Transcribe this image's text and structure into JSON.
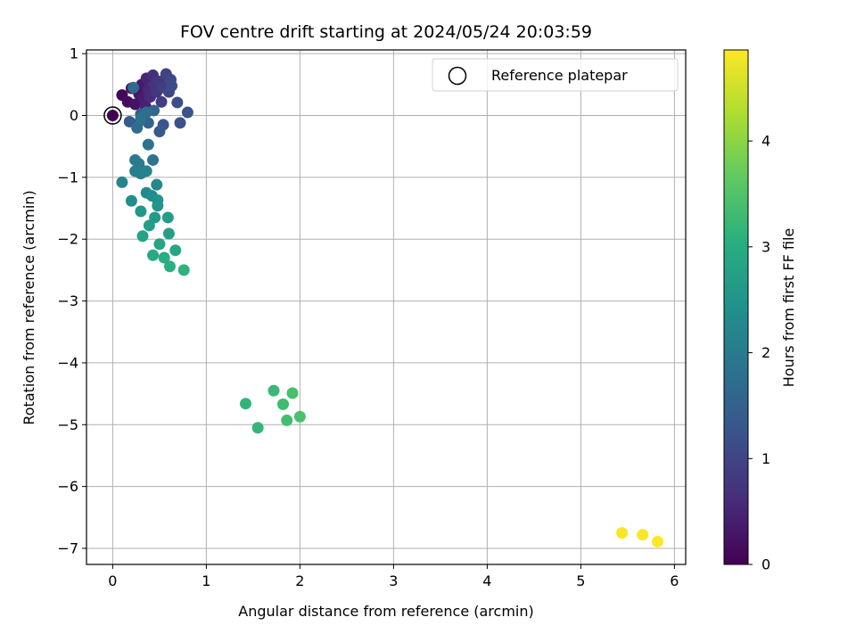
{
  "chart_data": {
    "type": "scatter",
    "title": "FOV centre drift starting at 2024/05/24 20:03:59",
    "xlabel": "Angular distance from reference (arcmin)",
    "ylabel": "Rotation from reference (arcmin)",
    "xlim": [
      -0.28,
      6.12
    ],
    "ylim": [
      -7.26,
      1.06
    ],
    "xticks": [
      0,
      1,
      2,
      3,
      4,
      5,
      6
    ],
    "xtick_labels": [
      "0",
      "1",
      "2",
      "3",
      "4",
      "5",
      "6"
    ],
    "yticks": [
      1,
      0,
      -1,
      -2,
      -3,
      -4,
      -5,
      -6,
      -7
    ],
    "ytick_labels": [
      "1",
      "0",
      "−1",
      "−2",
      "−3",
      "−4",
      "−5",
      "−6",
      "−7"
    ],
    "grid": true,
    "legend": {
      "label": "Reference platepar",
      "placement": "upper right"
    },
    "reference_point": {
      "x": 0,
      "y": 0
    },
    "colorbar": {
      "label": "Hours from first FF file",
      "colormap": "viridis",
      "range": [
        0,
        4.86
      ],
      "ticks": [
        0,
        1,
        2,
        3,
        4
      ],
      "tick_labels": [
        "0",
        "1",
        "2",
        "3",
        "4"
      ]
    },
    "series": [
      {
        "points": [
          {
            "x": 0.0,
            "y": 0.0,
            "c": 0.0
          },
          {
            "x": 0.1,
            "y": 0.33,
            "c": 0.1
          },
          {
            "x": 0.16,
            "y": 0.22,
            "c": 0.15
          },
          {
            "x": 0.2,
            "y": 0.44,
            "c": 0.2
          },
          {
            "x": 0.24,
            "y": 0.18,
            "c": 0.25
          },
          {
            "x": 0.28,
            "y": 0.35,
            "c": 0.3
          },
          {
            "x": 0.31,
            "y": 0.5,
            "c": 0.35
          },
          {
            "x": 0.33,
            "y": 0.28,
            "c": 0.4
          },
          {
            "x": 0.35,
            "y": 0.15,
            "c": 0.45
          },
          {
            "x": 0.36,
            "y": 0.6,
            "c": 0.5
          },
          {
            "x": 0.38,
            "y": 0.42,
            "c": 0.55
          },
          {
            "x": 0.4,
            "y": 0.3,
            "c": 0.6
          },
          {
            "x": 0.43,
            "y": 0.65,
            "c": 0.65
          },
          {
            "x": 0.45,
            "y": 0.5,
            "c": 0.7
          },
          {
            "x": 0.47,
            "y": 0.38,
            "c": 0.75
          },
          {
            "x": 0.5,
            "y": 0.55,
            "c": 0.8
          },
          {
            "x": 0.52,
            "y": 0.22,
            "c": 0.85
          },
          {
            "x": 0.55,
            "y": 0.45,
            "c": 0.9
          },
          {
            "x": 0.57,
            "y": 0.67,
            "c": 0.95
          },
          {
            "x": 0.6,
            "y": 0.38,
            "c": 1.0
          },
          {
            "x": 0.62,
            "y": 0.58,
            "c": 1.05
          },
          {
            "x": 0.63,
            "y": 0.48,
            "c": 1.1
          },
          {
            "x": 0.69,
            "y": 0.21,
            "c": 1.15
          },
          {
            "x": 0.72,
            "y": -0.12,
            "c": 1.2
          },
          {
            "x": 0.8,
            "y": 0.05,
            "c": 1.25
          },
          {
            "x": 0.54,
            "y": -0.15,
            "c": 1.3
          },
          {
            "x": 0.5,
            "y": -0.26,
            "c": 1.35
          },
          {
            "x": 0.18,
            "y": -0.1,
            "c": 1.4
          },
          {
            "x": 0.26,
            "y": -0.15,
            "c": 1.45
          },
          {
            "x": 0.3,
            "y": 0.02,
            "c": 1.5
          },
          {
            "x": 0.38,
            "y": -0.12,
            "c": 1.55
          },
          {
            "x": 0.44,
            "y": 0.08,
            "c": 1.6
          },
          {
            "x": 0.22,
            "y": 0.45,
            "c": 1.65
          },
          {
            "x": 0.26,
            "y": -0.2,
            "c": 1.7
          },
          {
            "x": 0.36,
            "y": 0.05,
            "c": 1.75
          },
          {
            "x": 0.3,
            "y": -0.05,
            "c": 1.8
          }
        ]
      },
      {
        "points": [
          {
            "x": 0.38,
            "y": -0.47,
            "c": 1.85
          },
          {
            "x": 0.43,
            "y": -0.72,
            "c": 1.9
          },
          {
            "x": 0.24,
            "y": -0.72,
            "c": 1.95
          },
          {
            "x": 0.28,
            "y": -0.78,
            "c": 2.0
          },
          {
            "x": 0.24,
            "y": -0.9,
            "c": 2.05
          },
          {
            "x": 0.3,
            "y": -0.94,
            "c": 2.1
          },
          {
            "x": 0.36,
            "y": -0.9,
            "c": 2.15
          },
          {
            "x": 0.1,
            "y": -1.08,
            "c": 2.2
          },
          {
            "x": 0.47,
            "y": -1.12,
            "c": 2.25
          },
          {
            "x": 0.36,
            "y": -1.25,
            "c": 2.3
          },
          {
            "x": 0.42,
            "y": -1.3,
            "c": 2.35
          },
          {
            "x": 0.2,
            "y": -1.38,
            "c": 2.4
          },
          {
            "x": 0.48,
            "y": -1.37,
            "c": 2.45
          },
          {
            "x": 0.48,
            "y": -1.46,
            "c": 2.5
          },
          {
            "x": 0.3,
            "y": -1.55,
            "c": 2.55
          },
          {
            "x": 0.45,
            "y": -1.65,
            "c": 2.6
          },
          {
            "x": 0.59,
            "y": -1.65,
            "c": 2.65
          },
          {
            "x": 0.39,
            "y": -1.78,
            "c": 2.7
          },
          {
            "x": 0.6,
            "y": -1.91,
            "c": 2.75
          },
          {
            "x": 0.32,
            "y": -1.95,
            "c": 2.8
          },
          {
            "x": 0.5,
            "y": -2.08,
            "c": 2.85
          },
          {
            "x": 0.67,
            "y": -2.18,
            "c": 2.9
          },
          {
            "x": 0.43,
            "y": -2.26,
            "c": 2.95
          },
          {
            "x": 0.55,
            "y": -2.3,
            "c": 3.0
          },
          {
            "x": 0.61,
            "y": -2.44,
            "c": 3.05
          },
          {
            "x": 0.76,
            "y": -2.5,
            "c": 3.1
          }
        ]
      },
      {
        "points": [
          {
            "x": 1.42,
            "y": -4.66,
            "c": 3.15
          },
          {
            "x": 1.55,
            "y": -5.05,
            "c": 3.2
          },
          {
            "x": 1.72,
            "y": -4.45,
            "c": 3.25
          },
          {
            "x": 1.82,
            "y": -4.67,
            "c": 3.3
          },
          {
            "x": 1.86,
            "y": -4.93,
            "c": 3.35
          },
          {
            "x": 1.92,
            "y": -4.49,
            "c": 3.4
          },
          {
            "x": 2.0,
            "y": -4.87,
            "c": 3.45
          }
        ]
      },
      {
        "points": [
          {
            "x": 5.44,
            "y": -6.75,
            "c": 4.82
          },
          {
            "x": 5.66,
            "y": -6.78,
            "c": 4.84
          },
          {
            "x": 5.82,
            "y": -6.89,
            "c": 4.86
          }
        ]
      }
    ]
  }
}
